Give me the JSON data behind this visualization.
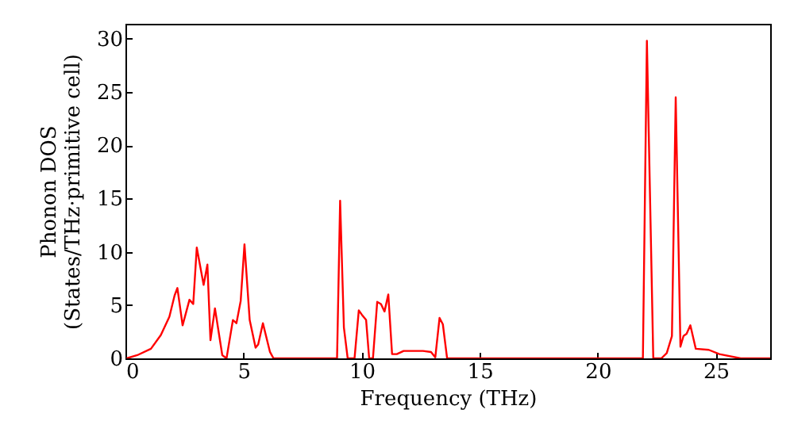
{
  "chart_data": {
    "type": "line",
    "xlabel": "Frequency (THz)",
    "ylabel": "Phonon DOS\n(States/THz·primitive cell)",
    "x": [
      0.05,
      0.5,
      1.08,
      1.5,
      1.86,
      2.08,
      2.2,
      2.42,
      2.71,
      2.87,
      3.02,
      3.31,
      3.47,
      3.6,
      3.79,
      4.1,
      4.28,
      4.55,
      4.7,
      4.88,
      5.04,
      5.26,
      5.51,
      5.62,
      5.82,
      6.12,
      6.27,
      7.5,
      8.96,
      9.09,
      9.25,
      9.41,
      9.7,
      9.88,
      10.01,
      10.19,
      10.32,
      10.48,
      10.66,
      10.82,
      10.97,
      11.13,
      11.29,
      11.49,
      11.78,
      12.6,
      12.94,
      13.12,
      13.3,
      13.44,
      13.62,
      16,
      19,
      21.91,
      22.08,
      22.35,
      22.69,
      22.92,
      23.14,
      23.3,
      23.5,
      23.63,
      23.76,
      23.92,
      24.15,
      24.7,
      25.15,
      26.05,
      27.3
    ],
    "series": [
      {
        "color": "#ff0000",
        "values": [
          0,
          0.3,
          0.9,
          2.2,
          3.9,
          5.9,
          6.6,
          3.1,
          5.5,
          5.1,
          10.4,
          6.9,
          8.8,
          1.7,
          4.7,
          0.3,
          0,
          3.6,
          3.3,
          5.4,
          10.7,
          3.6,
          1.0,
          1.3,
          3.3,
          0.6,
          0,
          0,
          0,
          14.8,
          2.9,
          0,
          0,
          4.5,
          4.1,
          3.6,
          0,
          0,
          5.3,
          5.1,
          4.4,
          6.0,
          0.4,
          0.4,
          0.7,
          0.7,
          0.6,
          0.1,
          3.8,
          3.2,
          0,
          0,
          0,
          0,
          29.8,
          0,
          0,
          0.5,
          2.1,
          24.5,
          1.1,
          2.1,
          2.3,
          3.1,
          0.9,
          0.8,
          0.4,
          0,
          0
        ]
      }
    ],
    "xlim": [
      0,
      27.3
    ],
    "ylim": [
      0,
      31.4
    ],
    "xticks": [
      0,
      5,
      10,
      15,
      20,
      25
    ],
    "yticks": [
      0,
      5,
      10,
      15,
      20,
      25,
      30
    ],
    "grid": false,
    "marker": "none",
    "line_style": "solid"
  }
}
